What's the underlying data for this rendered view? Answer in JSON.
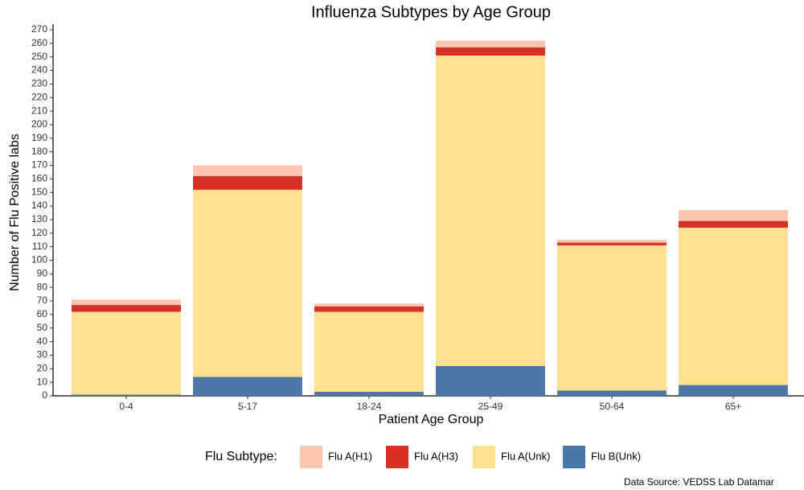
{
  "chart_data": {
    "type": "stacked_bar",
    "title": "Influenza Subtypes by Age Group",
    "x_label": "Patient Age Group",
    "y_label": "Number of Flu Positive labs",
    "legend_title": "Flu Subtype:",
    "legend_position": "bottom",
    "caption": "Data Source: VEDSS Lab Datamar",
    "categories": [
      "0-4",
      "5-17",
      "18-24",
      "25-49",
      "50-64",
      "65+"
    ],
    "series": [
      {
        "name": "Flu A(H1)",
        "color": "#fcc5ad",
        "values": [
          4,
          8,
          2,
          5,
          2,
          8
        ]
      },
      {
        "name": "Flu A(H3)",
        "color": "#d73027",
        "values": [
          5,
          10,
          4,
          6,
          2,
          5
        ]
      },
      {
        "name": "Flu A(Unk)",
        "color": "#fee090",
        "values": [
          61,
          138,
          59,
          229,
          107,
          116
        ]
      },
      {
        "name": "Flu B(Unk)",
        "color": "#4a78a8",
        "values": [
          1,
          14,
          3,
          22,
          4,
          8
        ]
      }
    ],
    "ylim": [
      0,
      270
    ],
    "yticks": [
      0,
      10,
      20,
      30,
      40,
      50,
      60,
      70,
      80,
      90,
      100,
      110,
      120,
      130,
      140,
      150,
      160,
      170,
      180,
      190,
      200,
      210,
      220,
      230,
      240,
      250,
      260,
      270
    ],
    "grid": false
  }
}
